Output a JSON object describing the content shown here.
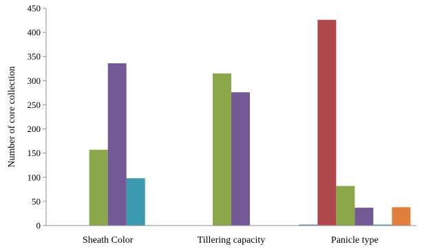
{
  "chart_data": {
    "type": "bar",
    "title": "",
    "xlabel": "",
    "ylabel": "Number of core collection",
    "ylim": [
      0,
      450
    ],
    "yticks": [
      0,
      50,
      100,
      150,
      200,
      250,
      300,
      350,
      400,
      450
    ],
    "grid": false,
    "legend": "none",
    "categories": [
      "Sheath Color",
      "Tillering capacity",
      "Panicle type"
    ],
    "series": [
      {
        "color": "#4472c4",
        "values": [
          0,
          0,
          2
        ]
      },
      {
        "color": "#b0474a",
        "values": [
          0,
          0,
          426
        ]
      },
      {
        "color": "#8aa84a",
        "values": [
          157,
          315,
          82
        ]
      },
      {
        "color": "#735a96",
        "values": [
          336,
          276,
          37
        ]
      },
      {
        "color": "#3c9ab0",
        "values": [
          98,
          0,
          2
        ]
      },
      {
        "color": "#e07f3c",
        "values": [
          0,
          0,
          38
        ]
      }
    ]
  }
}
